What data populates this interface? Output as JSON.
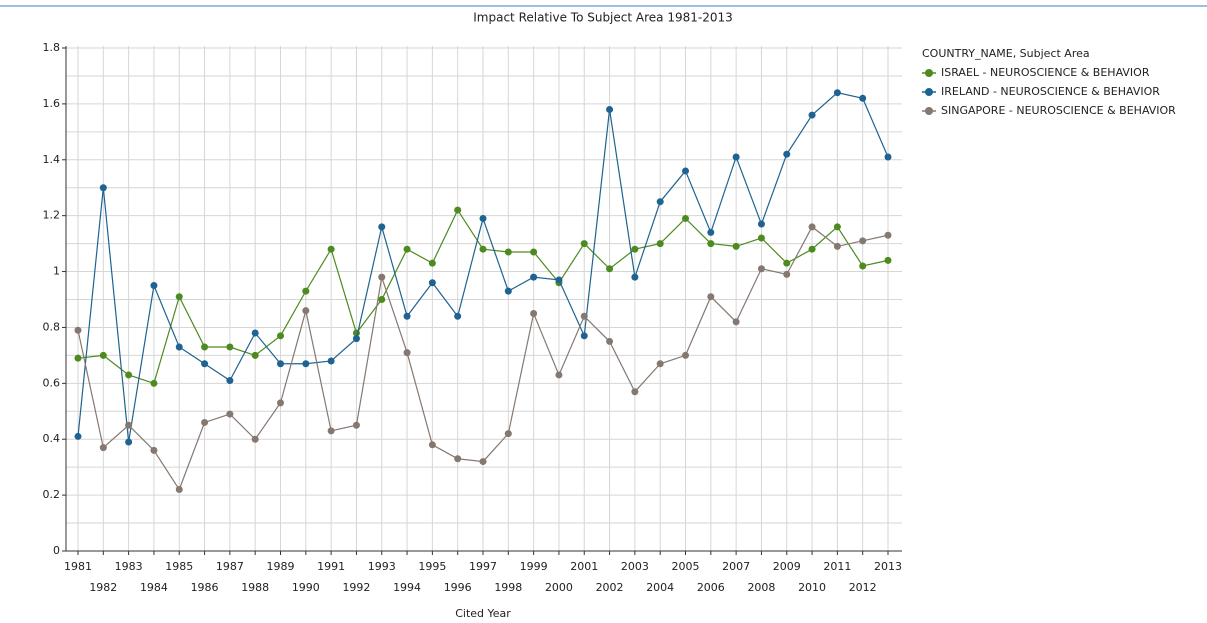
{
  "chart_data": {
    "type": "line",
    "title": "Impact Relative To Subject Area 1981-2013",
    "x_label": "Cited Year",
    "legend_title": "COUNTRY_NAME, Subject Area",
    "legend": "right",
    "grid": true,
    "x": [
      1981,
      1982,
      1983,
      1984,
      1985,
      1986,
      1987,
      1988,
      1989,
      1990,
      1991,
      1992,
      1993,
      1994,
      1995,
      1996,
      1997,
      1998,
      1999,
      2000,
      2001,
      2002,
      2003,
      2004,
      2005,
      2006,
      2007,
      2008,
      2009,
      2010,
      2011,
      2012,
      2013
    ],
    "xlim": [
      1981,
      2013
    ],
    "xticks": [
      1981,
      1982,
      1983,
      1984,
      1985,
      1986,
      1987,
      1988,
      1989,
      1990,
      1991,
      1992,
      1993,
      1994,
      1995,
      1996,
      1997,
      1998,
      1999,
      2000,
      2001,
      2002,
      2003,
      2004,
      2005,
      2006,
      2007,
      2008,
      2009,
      2010,
      2011,
      2012,
      2013
    ],
    "ylim": [
      0,
      1.8
    ],
    "yticks": [
      0,
      0.2,
      0.4,
      0.6,
      0.8,
      1,
      1.2,
      1.4,
      1.6,
      1.8
    ],
    "yminor_ticks": [
      0.1,
      0.3,
      0.5,
      0.7,
      0.9,
      1.1,
      1.3,
      1.5,
      1.7
    ],
    "series": [
      {
        "name": "ISRAEL - NEUROSCIENCE & BEHAVIOR",
        "color": "#4d8a1f",
        "values": [
          0.69,
          0.7,
          0.63,
          0.6,
          0.91,
          0.73,
          0.73,
          0.7,
          0.77,
          0.93,
          1.08,
          0.78,
          0.9,
          1.08,
          1.03,
          1.22,
          1.08,
          1.07,
          1.07,
          0.96,
          1.1,
          1.01,
          1.08,
          1.1,
          1.19,
          1.1,
          1.09,
          1.12,
          1.03,
          1.08,
          1.16,
          1.02,
          1.04
        ]
      },
      {
        "name": "IRELAND - NEUROSCIENCE & BEHAVIOR",
        "color": "#1e6391",
        "values": [
          0.41,
          1.3,
          0.39,
          0.95,
          0.73,
          0.67,
          0.61,
          0.78,
          0.67,
          0.67,
          0.68,
          0.76,
          1.16,
          0.84,
          0.96,
          0.84,
          1.19,
          0.93,
          0.98,
          0.97,
          0.77,
          1.58,
          0.98,
          1.25,
          1.36,
          1.14,
          1.41,
          1.17,
          1.42,
          1.56,
          1.64,
          1.62,
          1.41
        ]
      },
      {
        "name": "SINGAPORE - NEUROSCIENCE & BEHAVIOR",
        "color": "#857870",
        "values": [
          0.79,
          0.37,
          0.45,
          0.36,
          0.22,
          0.46,
          0.49,
          0.4,
          0.53,
          0.86,
          0.43,
          0.45,
          0.98,
          0.71,
          0.38,
          0.33,
          0.32,
          0.42,
          0.85,
          0.63,
          0.84,
          0.75,
          0.57,
          0.67,
          0.7,
          0.91,
          0.82,
          1.01,
          0.99,
          1.16,
          1.09,
          1.11,
          1.13
        ]
      }
    ]
  }
}
